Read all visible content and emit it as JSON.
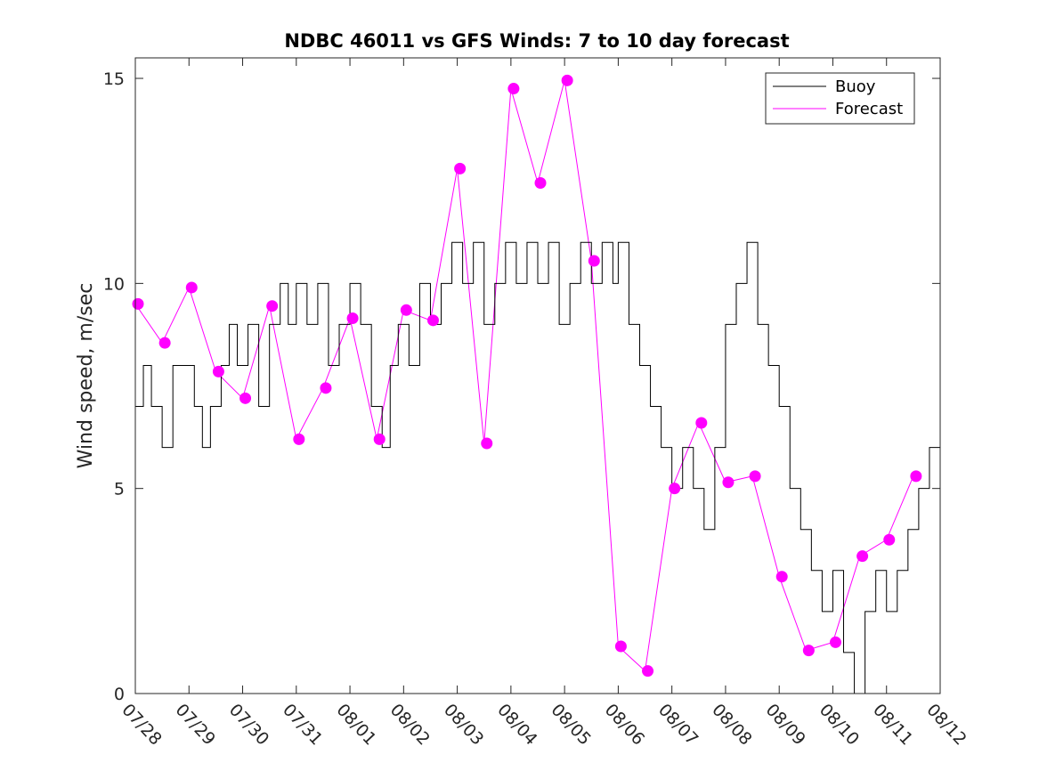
{
  "chart_data": {
    "type": "line",
    "title": "NDBC 46011 vs GFS Winds: 7 to 10 day forecast",
    "xlabel": "",
    "ylabel": "Wind speed, m/sec",
    "xlim": [
      0,
      15
    ],
    "ylim": [
      0,
      15.5
    ],
    "x_unit": "days from 07/28",
    "x_tick_values": [
      0,
      1,
      2,
      3,
      4,
      5,
      6,
      7,
      8,
      9,
      10,
      11,
      12,
      13,
      14,
      15
    ],
    "x_tick_labels": [
      "07/28",
      "07/29",
      "07/30",
      "07/31",
      "08/01",
      "08/02",
      "08/03",
      "08/04",
      "08/05",
      "08/06",
      "08/07",
      "08/08",
      "08/09",
      "08/10",
      "08/11",
      "08/12"
    ],
    "y_tick_values": [
      0,
      5,
      10,
      15
    ],
    "y_tick_labels": [
      "0",
      "5",
      "10",
      "15"
    ],
    "grid": false,
    "legend_position": "top-right",
    "colors": {
      "buoy": "#000000",
      "forecast": "#ff00ff"
    },
    "series": [
      {
        "name": "Buoy",
        "style": "step",
        "x": [
          0,
          0.15,
          0.3,
          0.5,
          0.7,
          0.9,
          1.1,
          1.25,
          1.4,
          1.6,
          1.75,
          1.9,
          2.1,
          2.3,
          2.5,
          2.7,
          2.85,
          3.0,
          3.2,
          3.4,
          3.6,
          3.8,
          4.0,
          4.2,
          4.4,
          4.6,
          4.75,
          4.9,
          5.1,
          5.3,
          5.5,
          5.7,
          5.9,
          6.0,
          6.1,
          6.3,
          6.5,
          6.7,
          6.9,
          7.1,
          7.3,
          7.5,
          7.7,
          7.9,
          8.1,
          8.3,
          8.5,
          8.7,
          8.9,
          9.0,
          9.2,
          9.4,
          9.6,
          9.8,
          10.0,
          10.2,
          10.4,
          10.6,
          10.8,
          11.0,
          11.2,
          11.4,
          11.6,
          11.8,
          12.0,
          12.2,
          12.4,
          12.6,
          12.8,
          13.0,
          13.2,
          13.4,
          13.6,
          13.8,
          14.0,
          14.2,
          14.4,
          14.6,
          14.8,
          15.0
        ],
        "values": [
          7,
          8,
          7,
          6,
          8,
          8,
          7,
          6,
          7,
          8,
          9,
          8,
          9,
          7,
          9,
          10,
          9,
          10,
          9,
          10,
          8,
          9,
          10,
          9,
          7,
          6,
          8,
          9,
          8,
          10,
          9,
          10,
          11,
          11,
          10,
          11,
          9,
          10,
          11,
          10,
          11,
          10,
          11,
          9,
          10,
          11,
          10,
          11,
          10,
          11,
          9,
          8,
          7,
          6,
          5,
          6,
          5,
          4,
          6,
          9,
          10,
          11,
          9,
          8,
          7,
          5,
          4,
          3,
          2,
          3,
          1,
          0,
          2,
          3,
          2,
          3,
          4,
          5,
          6,
          5
        ]
      },
      {
        "name": "Forecast",
        "style": "line",
        "x": [
          0,
          0.5,
          1.0,
          1.5,
          2.0,
          2.5,
          3.0,
          3.5,
          4.0,
          4.5,
          5.0,
          5.5,
          6.0,
          6.5,
          7.0,
          7.5,
          8.0,
          8.5,
          9.0,
          9.5,
          10.0,
          10.5,
          11.0,
          11.5,
          12.0,
          12.5,
          13.0,
          13.5,
          14.0,
          14.5
        ],
        "values": [
          9.5,
          8.55,
          9.9,
          7.85,
          7.2,
          9.45,
          6.2,
          7.45,
          9.15,
          6.2,
          9.35,
          9.1,
          12.8,
          6.1,
          14.75,
          12.45,
          14.95,
          10.55,
          1.15,
          0.55,
          5.0,
          6.6,
          5.15,
          5.3,
          2.85,
          1.05,
          1.25,
          3.35,
          3.75,
          5.3
        ]
      }
    ],
    "forecast_markers": {
      "x": [
        0.05,
        0.55,
        1.05,
        1.55,
        2.05,
        2.55,
        3.05,
        3.55,
        4.05,
        4.55,
        5.05,
        5.55,
        6.05,
        6.55,
        7.05,
        7.55,
        8.05,
        8.55,
        9.05,
        9.55,
        10.05,
        10.55,
        11.05,
        11.55,
        12.05,
        12.55,
        13.05,
        13.55,
        14.05,
        14.55
      ],
      "values": [
        9.5,
        8.55,
        9.9,
        7.85,
        7.2,
        9.45,
        6.2,
        7.45,
        9.15,
        6.2,
        9.35,
        9.1,
        12.8,
        6.1,
        14.75,
        12.45,
        14.95,
        10.55,
        1.15,
        0.55,
        5.0,
        6.6,
        5.15,
        5.3,
        2.85,
        1.05,
        1.25,
        3.35,
        3.75,
        5.3
      ]
    }
  }
}
